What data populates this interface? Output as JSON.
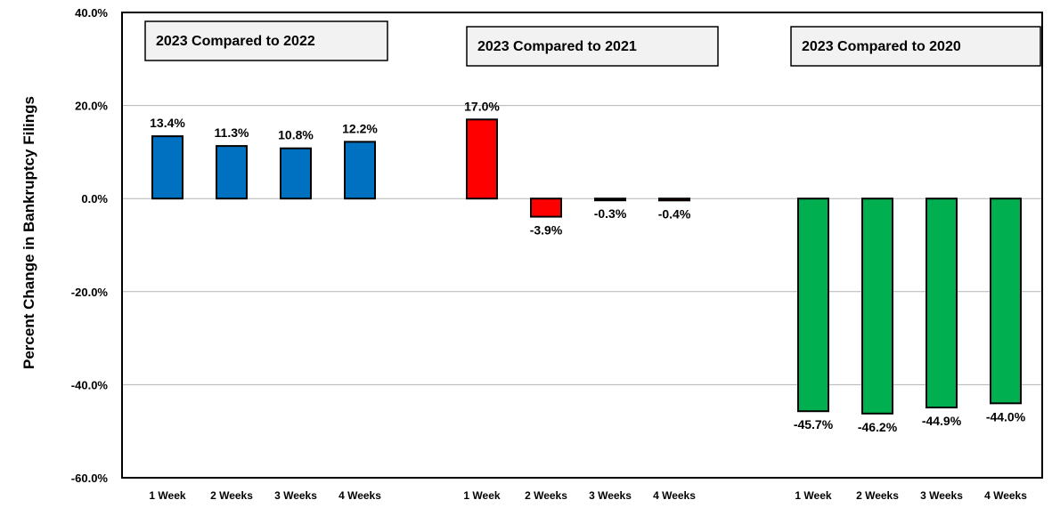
{
  "chart_data": {
    "type": "bar",
    "title": "",
    "xlabel": "",
    "ylabel": "Percent Change in Bankruptcy Filings",
    "ylim": [
      -60,
      40
    ],
    "yticks": [
      "40.0%",
      "20.0%",
      "0.0%",
      "-20.0%",
      "-40.0%",
      "-60.0%"
    ],
    "grid": true,
    "legend": "none",
    "categories": [
      "1 Week",
      "2 Weeks",
      "3 Weeks",
      "4 Weeks"
    ],
    "groups": [
      {
        "label": "2023 Compared to 2022",
        "color": "#0070C0",
        "values": [
          13.4,
          11.3,
          10.8,
          12.2
        ],
        "data_labels": [
          "13.4%",
          "11.3%",
          "10.8%",
          "12.2%"
        ]
      },
      {
        "label": "2023 Compared to 2021",
        "color": "#FF0000",
        "values": [
          17.0,
          -3.9,
          -0.3,
          -0.4
        ],
        "data_labels": [
          "17.0%",
          "-3.9%",
          "-0.3%",
          "-0.4%"
        ]
      },
      {
        "label": "2023 Compared to 2020",
        "color": "#00B050",
        "values": [
          -45.7,
          -46.2,
          -44.9,
          -44.0
        ],
        "data_labels": [
          "-45.7%",
          "-46.2%",
          "-44.9%",
          "-44.0%"
        ]
      }
    ]
  }
}
